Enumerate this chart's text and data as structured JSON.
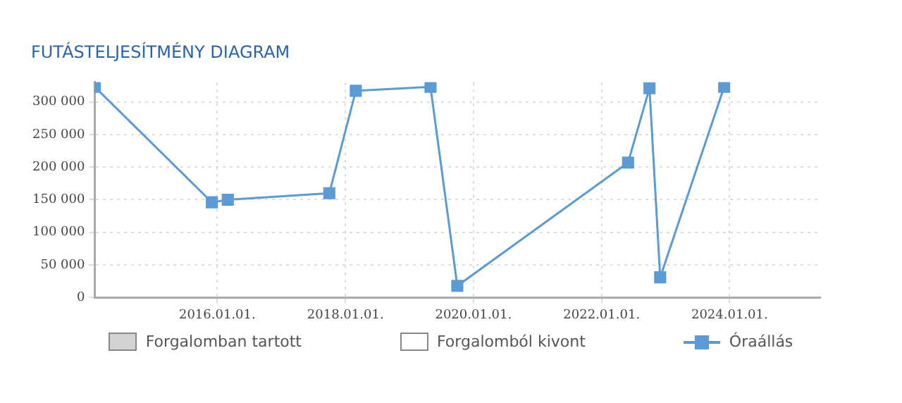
{
  "chart_data": {
    "type": "line",
    "title": "FUTÁSTELJESÍTMÉNY DIAGRAM",
    "x": [
      "2014-02",
      "2015-12",
      "2016-03",
      "2017-10",
      "2018-03",
      "2019-05",
      "2019-10",
      "2022-06",
      "2022-10",
      "2022-12",
      "2023-12"
    ],
    "series": [
      {
        "name": "Forgalomban tartott",
        "type": "bar",
        "color": "#d3d3d3",
        "values": [
          null,
          null,
          null,
          null,
          null,
          null,
          null,
          null,
          null,
          null,
          null
        ]
      },
      {
        "name": "Forgalomból kivont",
        "type": "bar",
        "color": "#ffffff",
        "values": [
          null,
          null,
          null,
          null,
          null,
          null,
          null,
          null,
          null,
          null,
          null
        ]
      },
      {
        "name": "Óraállás",
        "color": "#5b9bd5",
        "values": [
          323000,
          146000,
          150000,
          160000,
          317000,
          323000,
          18000,
          207000,
          321000,
          31000,
          323000
        ]
      }
    ],
    "xlim": [
      "2014-02",
      "2025-06"
    ],
    "xticks": [
      {
        "value": "2016-01-01",
        "label": "2016.01.01."
      },
      {
        "value": "2018-01-01",
        "label": "2018.01.01."
      },
      {
        "value": "2020-01-01",
        "label": "2020.01.01."
      },
      {
        "value": "2022-01-01",
        "label": "2022.01.01."
      },
      {
        "value": "2024-01-01",
        "label": "2024.01.01."
      }
    ],
    "ylim": [
      0,
      330000
    ],
    "yticks": [
      0,
      {
        "value": 50000,
        "label": "50 000"
      },
      {
        "value": 100000,
        "label": "100 000"
      },
      {
        "value": 150000,
        "label": "150 000"
      },
      {
        "value": 200000,
        "label": "200 000"
      },
      {
        "value": 250000,
        "label": "250 000"
      },
      {
        "value": 300000,
        "label": "300 000"
      }
    ],
    "grid": true,
    "legend": "bottom",
    "marker": "square",
    "line_style": "solid"
  }
}
